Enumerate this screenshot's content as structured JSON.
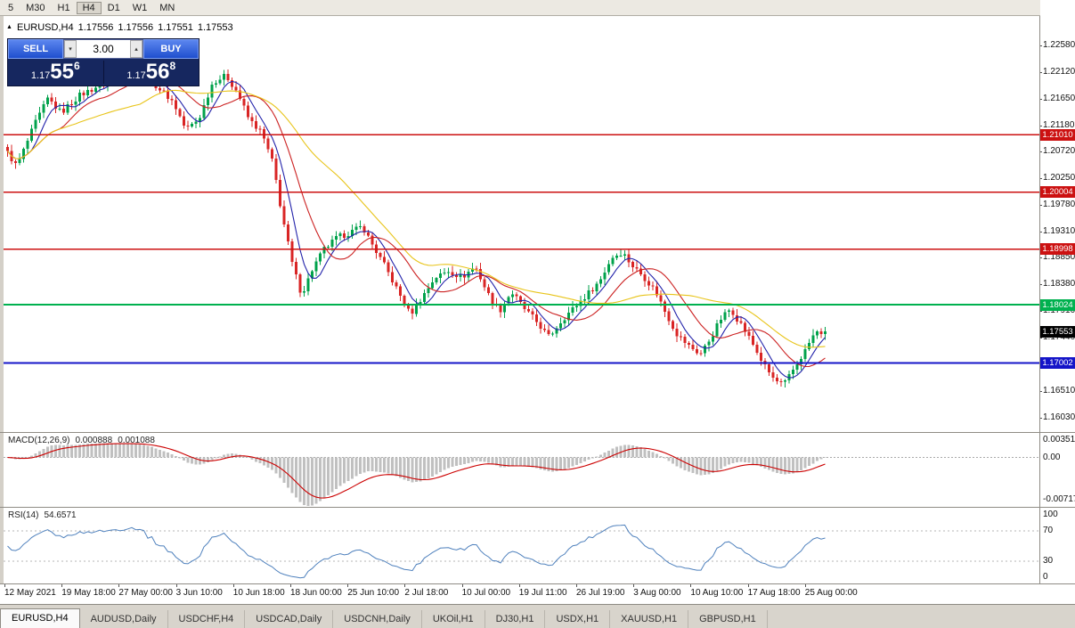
{
  "toolbar": {
    "timeframes": [
      "5",
      "M30",
      "H1",
      "H4",
      "D1",
      "W1",
      "MN"
    ],
    "active": "H4"
  },
  "chart_header": {
    "marker": "▲",
    "symbol": "EURUSD,H4",
    "open": "1.17556",
    "high": "1.17556",
    "low": "1.17551",
    "close": "1.17553"
  },
  "one_click": {
    "sell_label": "SELL",
    "buy_label": "BUY",
    "volume": "3.00",
    "volume_down_glyph": "▾",
    "volume_up_glyph": "▴",
    "sell_price": {
      "small": "1.17",
      "big": "55",
      "sup": "6"
    },
    "buy_price": {
      "small": "1.17",
      "big": "56",
      "sup": "8"
    }
  },
  "price_axis": {
    "labels": [
      "1.22580",
      "1.22120",
      "1.21650",
      "1.21180",
      "1.20720",
      "1.20250",
      "1.19780",
      "1.19310",
      "1.18850",
      "1.18380",
      "1.17910",
      "1.17440",
      "1.16970",
      "1.16510",
      "1.16030"
    ]
  },
  "hlines": [
    {
      "price": 1.2101,
      "label": "1.21010",
      "color": "#cc1111",
      "width": 1.4
    },
    {
      "price": 1.20004,
      "label": "1.20004",
      "color": "#cc1111",
      "width": 1.4
    },
    {
      "price": 1.18998,
      "label": "1.18998",
      "color": "#cc1111",
      "width": 1.4
    },
    {
      "price": 1.18024,
      "label": "1.18024",
      "color": "#00b14f",
      "width": 2
    },
    {
      "price": 1.17002,
      "label": "1.17002",
      "color": "#1414c8",
      "width": 2
    }
  ],
  "current_price": {
    "value": 1.17553,
    "label": "1.17553",
    "bg": "#000000"
  },
  "macd": {
    "title": "MACD(12,26,9)",
    "main_value": "0.000888",
    "signal_value": "0.001088",
    "scale_top": "0.003515",
    "scale_zero": "0.00",
    "scale_bottom": "-0.00717",
    "scale_top_value": 0.003515,
    "scale_bottom_value": -0.00717,
    "histogram_color": "#c0c0c0",
    "signal_color": "#cc0000"
  },
  "rsi": {
    "title": "RSI(14)",
    "value": "54.6571",
    "scale_labels": [
      "100",
      "70",
      "30",
      "0"
    ],
    "levels": [
      70,
      30
    ],
    "line_color": "#4f81bd"
  },
  "time_axis": {
    "labels": [
      "12 May 2021",
      "19 May 18:00",
      "27 May 00:00",
      "3 Jun 10:00",
      "10 Jun 18:00",
      "18 Jun 00:00",
      "25 Jun 10:00",
      "2 Jul 18:00",
      "10 Jul 00:00",
      "19 Jul 11:00",
      "26 Jul 19:00",
      "3 Aug 00:00",
      "10 Aug 10:00",
      "17 Aug 18:00",
      "25 Aug 00:00"
    ]
  },
  "tabs": {
    "active": "EURUSD,H4",
    "items": [
      "EURUSD,H4",
      "AUDUSD,Daily",
      "USDCHF,H4",
      "USDCAD,Daily",
      "USDCNH,Daily",
      "UKOil,H1",
      "DJ30,H1",
      "USDX,H1",
      "XAUUSD,H1",
      "GBPUSD,H1"
    ]
  },
  "chart_data": {
    "type": "candlestick",
    "symbol": "EURUSD",
    "timeframe": "H4",
    "bars": 205,
    "last_close": 1.17553,
    "up_color": "#00a24b",
    "down_color": "#d92525",
    "price_range_top": 1.231,
    "price_range_bottom": 1.158,
    "moving_averages": [
      {
        "name": "fast",
        "period": 6,
        "color": "#2222aa"
      },
      {
        "name": "medium",
        "period": 14,
        "color": "#cc2222"
      },
      {
        "name": "slow",
        "period": 34,
        "color": "#e8c419"
      }
    ],
    "price_path": [
      [
        0,
        1.208
      ],
      [
        0.016,
        1.2045
      ],
      [
        0.038,
        1.212
      ],
      [
        0.054,
        1.2165
      ],
      [
        0.07,
        1.214
      ],
      [
        0.092,
        1.217
      ],
      [
        0.119,
        1.219
      ],
      [
        0.146,
        1.2205
      ],
      [
        0.163,
        1.2215
      ],
      [
        0.184,
        1.219
      ],
      [
        0.206,
        1.216
      ],
      [
        0.222,
        1.211
      ],
      [
        0.238,
        1.213
      ],
      [
        0.255,
        1.2195
      ],
      [
        0.271,
        1.2205
      ],
      [
        0.285,
        1.2175
      ],
      [
        0.298,
        1.213
      ],
      [
        0.314,
        1.2105
      ],
      [
        0.328,
        1.205
      ],
      [
        0.339,
        1.196
      ],
      [
        0.352,
        1.187
      ],
      [
        0.363,
        1.182
      ],
      [
        0.376,
        1.1865
      ],
      [
        0.39,
        1.19
      ],
      [
        0.406,
        1.192
      ],
      [
        0.423,
        1.193
      ],
      [
        0.437,
        1.194
      ],
      [
        0.45,
        1.1905
      ],
      [
        0.466,
        1.1865
      ],
      [
        0.482,
        1.182
      ],
      [
        0.495,
        1.1785
      ],
      [
        0.509,
        1.1815
      ],
      [
        0.525,
        1.185
      ],
      [
        0.542,
        1.1862
      ],
      [
        0.558,
        1.185
      ],
      [
        0.574,
        1.187
      ],
      [
        0.59,
        1.182
      ],
      [
        0.603,
        1.179
      ],
      [
        0.618,
        1.1825
      ],
      [
        0.634,
        1.1795
      ],
      [
        0.65,
        1.177
      ],
      [
        0.664,
        1.1745
      ],
      [
        0.679,
        1.1775
      ],
      [
        0.693,
        1.1795
      ],
      [
        0.71,
        1.182
      ],
      [
        0.726,
        1.1845
      ],
      [
        0.74,
        1.1885
      ],
      [
        0.753,
        1.1895
      ],
      [
        0.766,
        1.187
      ],
      [
        0.78,
        1.185
      ],
      [
        0.794,
        1.1825
      ],
      [
        0.807,
        1.1785
      ],
      [
        0.82,
        1.175
      ],
      [
        0.834,
        1.173
      ],
      [
        0.848,
        1.1715
      ],
      [
        0.861,
        1.1745
      ],
      [
        0.874,
        1.178
      ],
      [
        0.885,
        1.1795
      ],
      [
        0.899,
        1.1765
      ],
      [
        0.913,
        1.173
      ],
      [
        0.926,
        1.1695
      ],
      [
        0.939,
        1.1668
      ],
      [
        0.95,
        1.1662
      ],
      [
        0.962,
        1.169
      ],
      [
        0.975,
        1.172
      ],
      [
        0.987,
        1.1752
      ],
      [
        1,
        1.17553
      ]
    ]
  }
}
